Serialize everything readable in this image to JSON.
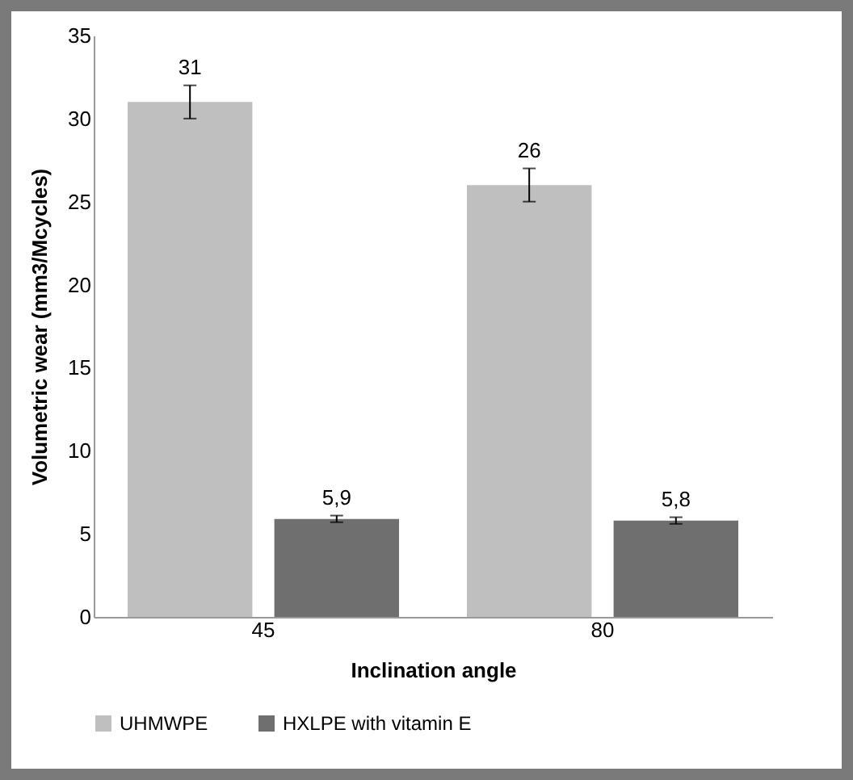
{
  "chart_data": {
    "type": "bar",
    "xlabel": "Inclination angle",
    "ylabel": "Volumetric wear (mm3/Mcycles)",
    "categories": [
      "45",
      "80"
    ],
    "series": [
      {
        "name": "UHMWPE",
        "color": "#bfbfbf",
        "values": [
          31,
          26
        ],
        "errors": [
          1,
          1
        ],
        "value_labels": [
          "31",
          "26"
        ]
      },
      {
        "name": "HXLPE with vitamin E",
        "color": "#6f6f6f",
        "values": [
          5.9,
          5.8
        ],
        "errors": [
          0.2,
          0.2
        ],
        "value_labels": [
          "5,9",
          "5,8"
        ]
      }
    ],
    "ylim": [
      0,
      35
    ],
    "yticks": [
      0,
      5,
      10,
      15,
      20,
      25,
      30,
      35
    ],
    "grid": false,
    "legend": "bottom"
  }
}
